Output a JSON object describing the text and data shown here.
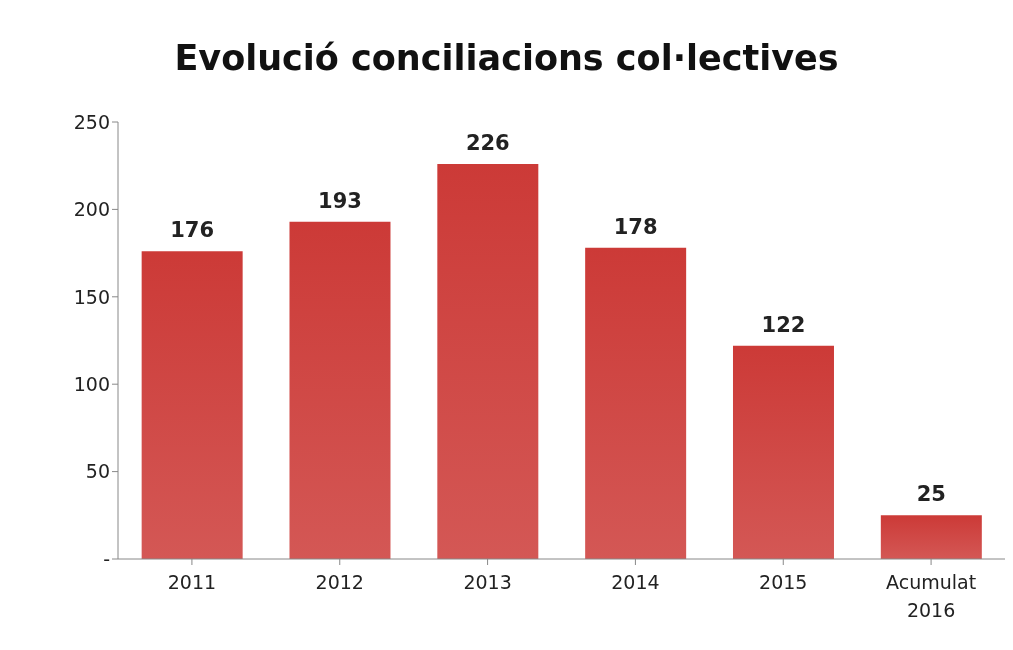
{
  "chart_data": {
    "type": "bar",
    "title": "Evolució conciliacions col·lectives",
    "categories": [
      "2011",
      "2012",
      "2013",
      "2014",
      "2015",
      "Acumulat 2016"
    ],
    "values": [
      176,
      193,
      226,
      178,
      122,
      25
    ],
    "color": "#cc3a37",
    "ylim": [
      0,
      250
    ],
    "yticks": [
      {
        "value": 0,
        "label": "-"
      },
      50,
      100,
      150,
      200,
      250
    ],
    "data_labels": true,
    "grid": false,
    "legend": false
  }
}
